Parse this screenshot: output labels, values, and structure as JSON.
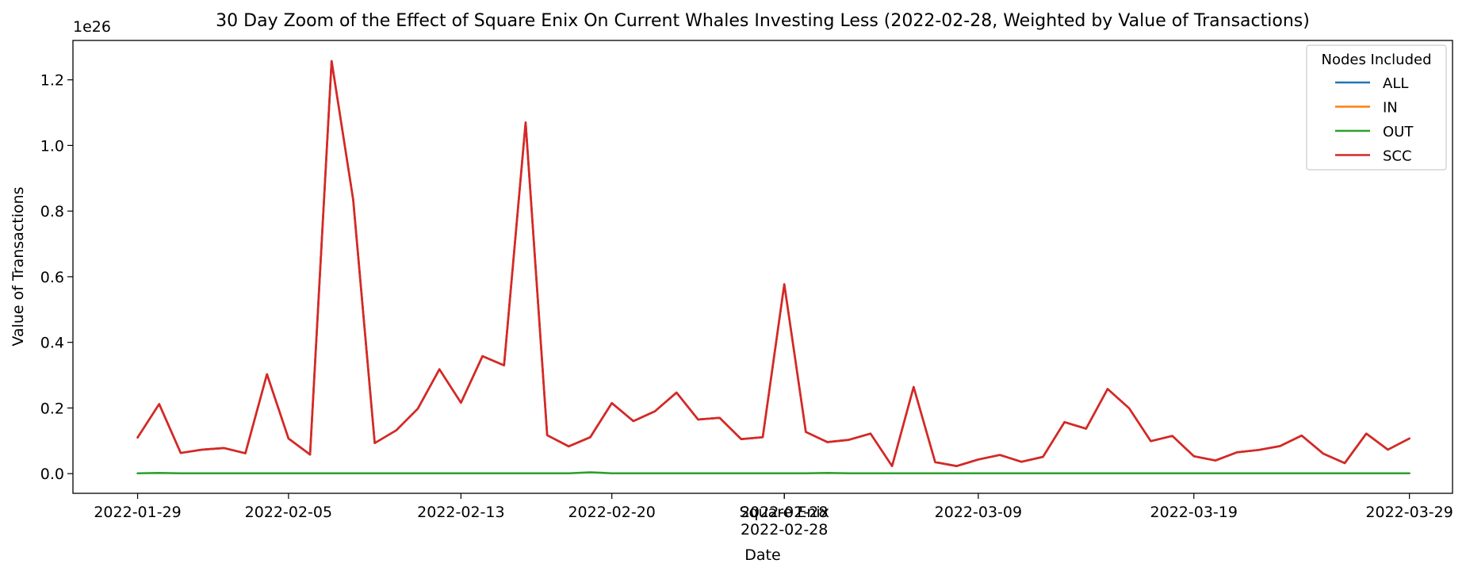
{
  "chart_data": {
    "type": "line",
    "title": "30 Day Zoom of the Effect of Square Enix On Current Whales Investing Less (2022-02-28, Weighted by Value of Transactions)",
    "xlabel": "Date",
    "ylabel": "Value of Transactions",
    "y_offset_label": "1e26",
    "y_scale_exponent": 26,
    "xlim": [
      "2022-01-26",
      "2022-03-31"
    ],
    "ylim": [
      -0.06,
      1.32
    ],
    "y_ticks": [
      0.0,
      0.2,
      0.4,
      0.6,
      0.8,
      1.0,
      1.2
    ],
    "y_tick_labels": [
      "0.0",
      "0.2",
      "0.4",
      "0.6",
      "0.8",
      "1.0",
      "1.2"
    ],
    "x_ticks": [
      "2022-01-29",
      "2022-02-05",
      "2022-02-13",
      "2022-02-20",
      "2022-02-28",
      "2022-03-09",
      "2022-03-19",
      "2022-03-29"
    ],
    "x_tick_labels": [
      "2022-01-29",
      "2022-02-05",
      "2022-02-13",
      "2022-02-20",
      "2022-02-28",
      "2022-03-09",
      "2022-03-19",
      "2022-03-29"
    ],
    "event": {
      "date": "2022-02-28",
      "label": "Square Enix"
    },
    "grid": false,
    "legend": {
      "title": "Nodes Included",
      "placement": "top-right"
    },
    "x": [
      "2022-01-29",
      "2022-01-30",
      "2022-01-31",
      "2022-02-01",
      "2022-02-02",
      "2022-02-03",
      "2022-02-04",
      "2022-02-05",
      "2022-02-06",
      "2022-02-07",
      "2022-02-08",
      "2022-02-09",
      "2022-02-10",
      "2022-02-11",
      "2022-02-12",
      "2022-02-13",
      "2022-02-14",
      "2022-02-15",
      "2022-02-16",
      "2022-02-17",
      "2022-02-18",
      "2022-02-19",
      "2022-02-20",
      "2022-02-21",
      "2022-02-22",
      "2022-02-23",
      "2022-02-24",
      "2022-02-25",
      "2022-02-26",
      "2022-02-27",
      "2022-02-28",
      "2022-03-01",
      "2022-03-02",
      "2022-03-03",
      "2022-03-04",
      "2022-03-05",
      "2022-03-06",
      "2022-03-07",
      "2022-03-08",
      "2022-03-09",
      "2022-03-10",
      "2022-03-11",
      "2022-03-12",
      "2022-03-13",
      "2022-03-14",
      "2022-03-15",
      "2022-03-16",
      "2022-03-17",
      "2022-03-18",
      "2022-03-19",
      "2022-03-20",
      "2022-03-21",
      "2022-03-22",
      "2022-03-23",
      "2022-03-24",
      "2022-03-25",
      "2022-03-26",
      "2022-03-27",
      "2022-03-28",
      "2022-03-29"
    ],
    "series": [
      {
        "name": "ALL",
        "color": "#1f77b4",
        "values": [
          0.11,
          0.212,
          0.063,
          0.073,
          0.078,
          0.062,
          0.303,
          0.107,
          0.058,
          1.257,
          0.835,
          0.093,
          0.132,
          0.198,
          0.318,
          0.216,
          0.358,
          0.33,
          1.07,
          0.117,
          0.083,
          0.111,
          0.215,
          0.16,
          0.19,
          0.247,
          0.165,
          0.17,
          0.105,
          0.111,
          0.577,
          0.127,
          0.096,
          0.103,
          0.122,
          0.023,
          0.264,
          0.035,
          0.023,
          0.043,
          0.057,
          0.036,
          0.051,
          0.157,
          0.137,
          0.258,
          0.199,
          0.099,
          0.115,
          0.053,
          0.04,
          0.065,
          0.072,
          0.084,
          0.116,
          0.061,
          0.032,
          0.122,
          0.073,
          0.107
        ]
      },
      {
        "name": "IN",
        "color": "#ff7f0e",
        "values": [
          0.11,
          0.212,
          0.063,
          0.073,
          0.078,
          0.062,
          0.303,
          0.107,
          0.058,
          1.257,
          0.835,
          0.093,
          0.132,
          0.198,
          0.318,
          0.216,
          0.358,
          0.33,
          1.07,
          0.117,
          0.083,
          0.111,
          0.215,
          0.16,
          0.19,
          0.247,
          0.165,
          0.17,
          0.105,
          0.111,
          0.577,
          0.127,
          0.096,
          0.103,
          0.122,
          0.023,
          0.264,
          0.035,
          0.023,
          0.043,
          0.057,
          0.036,
          0.051,
          0.157,
          0.137,
          0.258,
          0.199,
          0.099,
          0.115,
          0.053,
          0.04,
          0.065,
          0.072,
          0.084,
          0.116,
          0.061,
          0.032,
          0.122,
          0.073,
          0.107
        ]
      },
      {
        "name": "OUT",
        "color": "#2ca02c",
        "values": [
          0.001,
          0.002,
          0.001,
          0.001,
          0.001,
          0.001,
          0.001,
          0.001,
          0.001,
          0.001,
          0.001,
          0.001,
          0.001,
          0.001,
          0.001,
          0.001,
          0.001,
          0.001,
          0.001,
          0.001,
          0.001,
          0.004,
          0.001,
          0.001,
          0.001,
          0.001,
          0.001,
          0.001,
          0.001,
          0.001,
          0.001,
          0.001,
          0.002,
          0.001,
          0.001,
          0.001,
          0.001,
          0.001,
          0.001,
          0.001,
          0.001,
          0.001,
          0.001,
          0.001,
          0.001,
          0.001,
          0.001,
          0.001,
          0.001,
          0.001,
          0.001,
          0.001,
          0.001,
          0.001,
          0.001,
          0.001,
          0.001,
          0.001,
          0.001,
          0.001
        ]
      },
      {
        "name": "SCC",
        "color": "#d62728",
        "values": [
          0.11,
          0.212,
          0.063,
          0.073,
          0.078,
          0.062,
          0.303,
          0.107,
          0.058,
          1.257,
          0.835,
          0.093,
          0.132,
          0.198,
          0.318,
          0.216,
          0.358,
          0.33,
          1.07,
          0.117,
          0.083,
          0.111,
          0.215,
          0.16,
          0.19,
          0.247,
          0.165,
          0.17,
          0.105,
          0.111,
          0.577,
          0.127,
          0.096,
          0.103,
          0.122,
          0.023,
          0.264,
          0.035,
          0.023,
          0.043,
          0.057,
          0.036,
          0.051,
          0.157,
          0.137,
          0.258,
          0.199,
          0.099,
          0.115,
          0.053,
          0.04,
          0.065,
          0.072,
          0.084,
          0.116,
          0.061,
          0.032,
          0.122,
          0.073,
          0.107
        ]
      }
    ]
  }
}
